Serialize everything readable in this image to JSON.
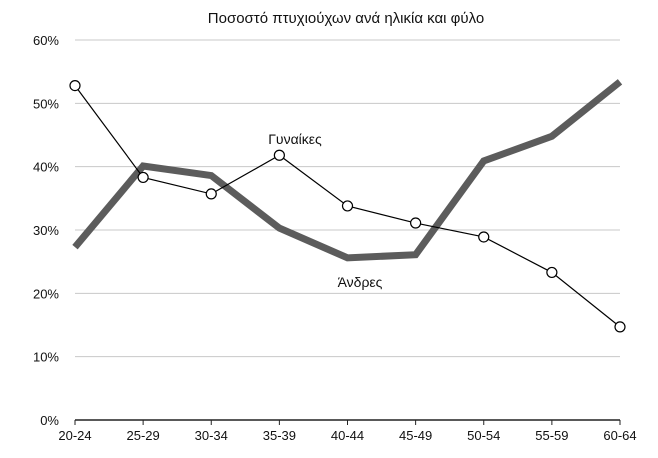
{
  "chart_data": {
    "type": "line",
    "title": "Ποσοστό πτυχιούχων ανά ηλικία και φύλο",
    "xlabel": "",
    "ylabel": "",
    "categories": [
      "20-24",
      "25-29",
      "30-34",
      "35-39",
      "40-44",
      "45-49",
      "50-54",
      "55-59",
      "60-64"
    ],
    "ylim": [
      0,
      60
    ],
    "yticks": [
      0,
      10,
      20,
      30,
      40,
      50,
      60
    ],
    "ytick_labels": [
      "0%",
      "10%",
      "20%",
      "30%",
      "40%",
      "50%",
      "60%"
    ],
    "grid": true,
    "legend": "none",
    "series": [
      {
        "name": "Γυναίκες",
        "values": [
          52.8,
          38.3,
          35.7,
          41.8,
          33.8,
          31.1,
          28.9,
          23.3,
          14.7
        ],
        "color": "#000000",
        "style": "thin line with hollow circle markers"
      },
      {
        "name": "Άνδρες",
        "values": [
          27.3,
          40.1,
          38.6,
          30.3,
          25.6,
          26.1,
          40.9,
          44.8,
          53.4
        ],
        "color": "#5c5c5c",
        "style": "thick line"
      }
    ],
    "annotations": [
      {
        "text": "Γυναίκες",
        "series": "Γυναίκες",
        "near": "35-39"
      },
      {
        "text": "Άνδρες",
        "series": "Άνδρες",
        "near": "45-49"
      }
    ]
  }
}
